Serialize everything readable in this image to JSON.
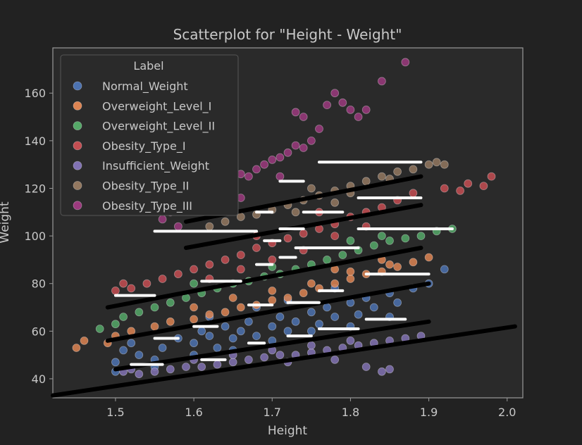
{
  "chart_data": {
    "type": "scatter",
    "title": "Scatterplot for \"Height - Weight\"",
    "xlabel": "Height",
    "ylabel": "Weight",
    "xlim": [
      1.42,
      2.02
    ],
    "ylim": [
      32,
      179
    ],
    "xticks": [
      1.5,
      1.6,
      1.7,
      1.8,
      1.9,
      2.0
    ],
    "xtick_labels": [
      "1.5",
      "1.6",
      "1.7",
      "1.8",
      "1.9",
      "2.0"
    ],
    "yticks": [
      40,
      60,
      80,
      100,
      120,
      140,
      160
    ],
    "ytick_labels": [
      "40",
      "60",
      "80",
      "100",
      "120",
      "140",
      "160"
    ],
    "grid": false,
    "legend": {
      "title": "Label",
      "placement": "top-left"
    },
    "series": [
      {
        "name": "Normal_Weight",
        "color": "#4c72b0",
        "points": [
          [
            1.5,
            43
          ],
          [
            1.5,
            47
          ],
          [
            1.51,
            52
          ],
          [
            1.52,
            55
          ],
          [
            1.53,
            50
          ],
          [
            1.55,
            48
          ],
          [
            1.56,
            53
          ],
          [
            1.58,
            57
          ],
          [
            1.6,
            55
          ],
          [
            1.61,
            60
          ],
          [
            1.62,
            58
          ],
          [
            1.63,
            53
          ],
          [
            1.64,
            62
          ],
          [
            1.65,
            57
          ],
          [
            1.66,
            60
          ],
          [
            1.67,
            64
          ],
          [
            1.68,
            58
          ],
          [
            1.7,
            62
          ],
          [
            1.71,
            66
          ],
          [
            1.72,
            60
          ],
          [
            1.73,
            64
          ],
          [
            1.75,
            68
          ],
          [
            1.76,
            63
          ],
          [
            1.77,
            70
          ],
          [
            1.78,
            66
          ],
          [
            1.8,
            72
          ],
          [
            1.81,
            67
          ],
          [
            1.82,
            74
          ],
          [
            1.83,
            70
          ],
          [
            1.85,
            76
          ],
          [
            1.86,
            72
          ],
          [
            1.88,
            78
          ],
          [
            1.9,
            80
          ],
          [
            1.92,
            86
          ],
          [
            1.55,
            45
          ],
          [
            1.6,
            50
          ],
          [
            1.65,
            52
          ],
          [
            1.7,
            56
          ],
          [
            1.75,
            60
          ],
          [
            1.8,
            62
          ],
          [
            1.85,
            66
          ],
          [
            1.72,
            73
          ],
          [
            1.78,
            78
          ],
          [
            1.62,
            66
          ],
          [
            1.68,
            70
          ]
        ]
      },
      {
        "name": "Overweight_Level_I",
        "color": "#dd8452",
        "points": [
          [
            1.45,
            53
          ],
          [
            1.46,
            56
          ],
          [
            1.49,
            55
          ],
          [
            1.5,
            58
          ],
          [
            1.52,
            60
          ],
          [
            1.55,
            62
          ],
          [
            1.57,
            64
          ],
          [
            1.6,
            65
          ],
          [
            1.62,
            67
          ],
          [
            1.64,
            68
          ],
          [
            1.66,
            70
          ],
          [
            1.68,
            71
          ],
          [
            1.7,
            73
          ],
          [
            1.72,
            74
          ],
          [
            1.74,
            76
          ],
          [
            1.76,
            78
          ],
          [
            1.78,
            80
          ],
          [
            1.8,
            82
          ],
          [
            1.82,
            84
          ],
          [
            1.84,
            85
          ],
          [
            1.86,
            87
          ],
          [
            1.88,
            89
          ],
          [
            1.9,
            91
          ],
          [
            1.6,
            70
          ],
          [
            1.65,
            74
          ],
          [
            1.7,
            77
          ],
          [
            1.75,
            80
          ],
          [
            1.8,
            85
          ],
          [
            1.85,
            88
          ],
          [
            1.78,
            86
          ],
          [
            1.84,
            90
          ]
        ]
      },
      {
        "name": "Overweight_Level_II",
        "color": "#55a868",
        "points": [
          [
            1.48,
            61
          ],
          [
            1.5,
            63
          ],
          [
            1.51,
            66
          ],
          [
            1.53,
            68
          ],
          [
            1.55,
            70
          ],
          [
            1.57,
            72
          ],
          [
            1.59,
            74
          ],
          [
            1.61,
            76
          ],
          [
            1.63,
            78
          ],
          [
            1.65,
            80
          ],
          [
            1.67,
            81
          ],
          [
            1.69,
            83
          ],
          [
            1.71,
            84
          ],
          [
            1.73,
            86
          ],
          [
            1.75,
            88
          ],
          [
            1.77,
            90
          ],
          [
            1.79,
            92
          ],
          [
            1.81,
            94
          ],
          [
            1.83,
            96
          ],
          [
            1.85,
            98
          ],
          [
            1.87,
            99
          ],
          [
            1.89,
            100
          ],
          [
            1.91,
            102
          ],
          [
            1.93,
            103
          ],
          [
            1.6,
            80
          ],
          [
            1.7,
            87
          ],
          [
            1.8,
            98
          ],
          [
            1.84,
            100
          ]
        ]
      },
      {
        "name": "Obesity_Type_I",
        "color": "#c44e52",
        "points": [
          [
            1.5,
            77
          ],
          [
            1.51,
            80
          ],
          [
            1.52,
            78
          ],
          [
            1.54,
            80
          ],
          [
            1.56,
            82
          ],
          [
            1.58,
            84
          ],
          [
            1.6,
            86
          ],
          [
            1.62,
            88
          ],
          [
            1.64,
            90
          ],
          [
            1.66,
            92
          ],
          [
            1.68,
            95
          ],
          [
            1.7,
            97
          ],
          [
            1.72,
            99
          ],
          [
            1.74,
            101
          ],
          [
            1.76,
            103
          ],
          [
            1.78,
            105
          ],
          [
            1.8,
            108
          ],
          [
            1.82,
            110
          ],
          [
            1.84,
            112
          ],
          [
            1.86,
            115
          ],
          [
            1.88,
            118
          ],
          [
            1.62,
            82
          ],
          [
            1.66,
            86
          ],
          [
            1.7,
            90
          ],
          [
            1.74,
            94
          ],
          [
            1.78,
            100
          ],
          [
            1.82,
            104
          ],
          [
            1.94,
            119
          ],
          [
            1.95,
            122
          ],
          [
            1.97,
            121
          ],
          [
            1.98,
            125
          ],
          [
            1.92,
            120
          ],
          [
            1.76,
            110
          ],
          [
            1.68,
            100
          ]
        ]
      },
      {
        "name": "Insufficient_Weight",
        "color": "#8172b3",
        "points": [
          [
            1.51,
            43
          ],
          [
            1.52,
            44
          ],
          [
            1.53,
            42
          ],
          [
            1.55,
            43
          ],
          [
            1.57,
            44
          ],
          [
            1.59,
            45
          ],
          [
            1.61,
            45
          ],
          [
            1.63,
            46
          ],
          [
            1.65,
            47
          ],
          [
            1.67,
            48
          ],
          [
            1.69,
            49
          ],
          [
            1.71,
            50
          ],
          [
            1.73,
            50
          ],
          [
            1.75,
            51
          ],
          [
            1.77,
            52
          ],
          [
            1.79,
            53
          ],
          [
            1.81,
            54
          ],
          [
            1.83,
            55
          ],
          [
            1.85,
            56
          ],
          [
            1.87,
            57
          ],
          [
            1.89,
            58
          ],
          [
            1.6,
            48
          ],
          [
            1.65,
            50
          ],
          [
            1.7,
            52
          ],
          [
            1.75,
            54
          ],
          [
            1.8,
            56
          ],
          [
            1.82,
            45
          ],
          [
            1.84,
            43
          ],
          [
            1.85,
            44
          ],
          [
            1.78,
            48
          ],
          [
            1.72,
            47
          ]
        ]
      },
      {
        "name": "Obesity_Type_II",
        "color": "#937860",
        "points": [
          [
            1.62,
            104
          ],
          [
            1.64,
            106
          ],
          [
            1.66,
            108
          ],
          [
            1.68,
            109
          ],
          [
            1.7,
            111
          ],
          [
            1.72,
            113
          ],
          [
            1.74,
            115
          ],
          [
            1.76,
            117
          ],
          [
            1.78,
            119
          ],
          [
            1.8,
            121
          ],
          [
            1.82,
            123
          ],
          [
            1.84,
            125
          ],
          [
            1.86,
            127
          ],
          [
            1.88,
            128
          ],
          [
            1.9,
            130
          ],
          [
            1.91,
            131
          ],
          [
            1.92,
            130
          ],
          [
            1.75,
            120
          ],
          [
            1.8,
            118
          ],
          [
            1.85,
            124
          ],
          [
            1.73,
            110
          ],
          [
            1.78,
            114
          ]
        ]
      },
      {
        "name": "Obesity_Type_III",
        "color": "#9b3a7e",
        "points": [
          [
            1.56,
            107
          ],
          [
            1.57,
            110
          ],
          [
            1.58,
            104
          ],
          [
            1.59,
            112
          ],
          [
            1.6,
            115
          ],
          [
            1.61,
            118
          ],
          [
            1.62,
            110
          ],
          [
            1.63,
            120
          ],
          [
            1.64,
            122
          ],
          [
            1.65,
            124
          ],
          [
            1.66,
            126
          ],
          [
            1.67,
            125
          ],
          [
            1.68,
            128
          ],
          [
            1.69,
            130
          ],
          [
            1.7,
            132
          ],
          [
            1.71,
            133
          ],
          [
            1.72,
            135
          ],
          [
            1.73,
            138
          ],
          [
            1.74,
            137
          ],
          [
            1.75,
            140
          ],
          [
            1.76,
            145
          ],
          [
            1.77,
            155
          ],
          [
            1.78,
            160
          ],
          [
            1.79,
            156
          ],
          [
            1.8,
            153
          ],
          [
            1.81,
            150
          ],
          [
            1.82,
            153
          ],
          [
            1.74,
            150
          ],
          [
            1.73,
            152
          ],
          [
            1.87,
            173
          ],
          [
            1.84,
            165
          ],
          [
            1.71,
            125
          ],
          [
            1.66,
            116
          ]
        ]
      }
    ],
    "overlay_lines": {
      "black": [
        [
          [
            1.42,
            33
          ],
          [
            2.01,
            62
          ]
        ],
        [
          [
            1.5,
            44
          ],
          [
            1.9,
            64
          ]
        ],
        [
          [
            1.49,
            56
          ],
          [
            1.9,
            80
          ]
        ],
        [
          [
            1.49,
            70
          ],
          [
            1.89,
            95
          ]
        ],
        [
          [
            1.59,
            95
          ],
          [
            1.89,
            113
          ]
        ],
        [
          [
            1.59,
            106
          ],
          [
            1.89,
            125
          ]
        ]
      ],
      "white": [
        [
          [
            1.55,
            102
          ],
          [
            1.68,
            102
          ]
        ],
        [
          [
            1.69,
            98
          ],
          [
            1.71,
            98
          ]
        ],
        [
          [
            1.71,
            103
          ],
          [
            1.74,
            103
          ]
        ],
        [
          [
            1.76,
            131
          ],
          [
            1.89,
            131
          ]
        ],
        [
          [
            1.71,
            123
          ],
          [
            1.74,
            123
          ]
        ],
        [
          [
            1.74,
            110
          ],
          [
            1.79,
            110
          ]
        ],
        [
          [
            1.81,
            116
          ],
          [
            1.89,
            116
          ]
        ],
        [
          [
            1.81,
            103
          ],
          [
            1.93,
            103
          ]
        ],
        [
          [
            1.68,
            110
          ],
          [
            1.7,
            110
          ]
        ],
        [
          [
            1.73,
            95
          ],
          [
            1.81,
            95
          ]
        ],
        [
          [
            1.71,
            91
          ],
          [
            1.73,
            91
          ]
        ],
        [
          [
            1.68,
            88
          ],
          [
            1.7,
            88
          ]
        ],
        [
          [
            1.5,
            75
          ],
          [
            1.55,
            75
          ]
        ],
        [
          [
            1.61,
            81
          ],
          [
            1.66,
            81
          ]
        ],
        [
          [
            1.82,
            84
          ],
          [
            1.9,
            84
          ]
        ],
        [
          [
            1.76,
            77
          ],
          [
            1.79,
            77
          ]
        ],
        [
          [
            1.72,
            72
          ],
          [
            1.76,
            72
          ]
        ],
        [
          [
            1.67,
            71
          ],
          [
            1.7,
            71
          ]
        ],
        [
          [
            1.82,
            65
          ],
          [
            1.87,
            65
          ]
        ],
        [
          [
            1.76,
            61
          ],
          [
            1.81,
            61
          ]
        ],
        [
          [
            1.72,
            58
          ],
          [
            1.75,
            58
          ]
        ],
        [
          [
            1.55,
            57
          ],
          [
            1.58,
            57
          ]
        ],
        [
          [
            1.6,
            62
          ],
          [
            1.63,
            62
          ]
        ],
        [
          [
            1.52,
            46
          ],
          [
            1.56,
            46
          ]
        ],
        [
          [
            1.61,
            48
          ],
          [
            1.64,
            48
          ]
        ],
        [
          [
            1.67,
            55
          ],
          [
            1.69,
            55
          ]
        ]
      ]
    }
  }
}
